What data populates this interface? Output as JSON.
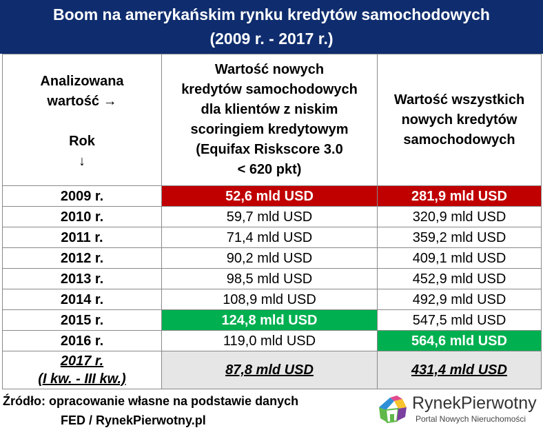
{
  "title": {
    "line1": "Boom na amerykańskim rynku kredytów samochodowych",
    "line2": "(2009 r. - 2017 r.)"
  },
  "header": {
    "col1": [
      "Analizowana",
      "wartość →",
      "",
      "Rok",
      "↓"
    ],
    "col2": [
      "Wartość nowych",
      "kredytów samochodowych",
      "dla klientów z niskim",
      "scoringiem kredytowym",
      "(Equifax Riskscore 3.0",
      "< 620 pkt)"
    ],
    "col3": [
      "Wartość wszystkich",
      "nowych kredytów",
      "samochodowych"
    ]
  },
  "rows": [
    {
      "year": "2009 r.",
      "subprime": "52,6 mld USD",
      "total": "281,9 mld USD"
    },
    {
      "year": "2010 r.",
      "subprime": "59,7 mld USD",
      "total": "320,9 mld USD"
    },
    {
      "year": "2011 r.",
      "subprime": "71,4 mld USD",
      "total": "359,2 mld USD"
    },
    {
      "year": "2012 r.",
      "subprime": "90,2 mld USD",
      "total": "409,1 mld USD"
    },
    {
      "year": "2013 r.",
      "subprime": "98,5 mld USD",
      "total": "452,9 mld USD"
    },
    {
      "year": "2014 r.",
      "subprime": "108,9 mld USD",
      "total": "492,9 mld USD"
    },
    {
      "year": "2015 r.",
      "subprime": "124,8 mld USD",
      "total": "547,5 mld USD"
    },
    {
      "year": "2016 r.",
      "subprime": "119,0 mld USD",
      "total": "564,6 mld USD"
    }
  ],
  "last_row": {
    "year": "2017 r.",
    "period": "(I kw. - III kw.)",
    "subprime": "87,8 mld USD",
    "total": "431,4 mld USD"
  },
  "footer": {
    "line1": "Źródło: opracowanie własne na podstawie danych",
    "line2": "FED / RynekPierwotny.pl"
  },
  "logo": {
    "brand_part1": "Rynek",
    "brand_part2": "Pierwotny",
    "tagline": "Portal Nowych Nieruchomości"
  },
  "colors": {
    "title_bg": "#0f2d6e",
    "highlight_min": "#c00000",
    "highlight_max": "#00b050",
    "partial_year_bg": "#e6e6e6"
  }
}
